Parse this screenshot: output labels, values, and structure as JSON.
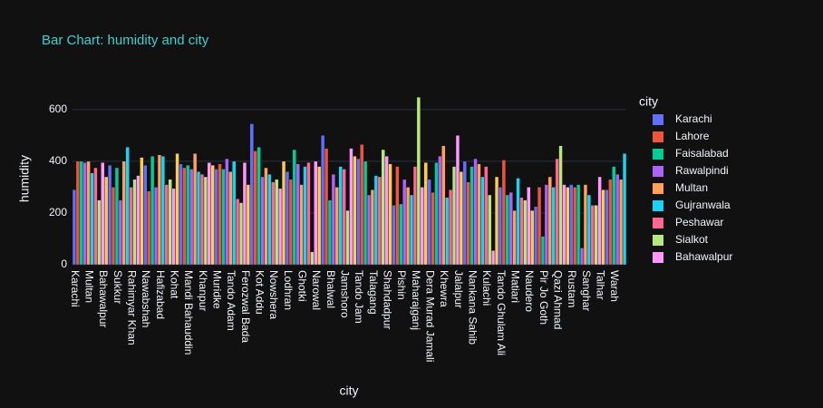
{
  "chart_data": {
    "type": "bar",
    "title": "Bar Chart: humidity and city",
    "x_label": "city",
    "y_label": "humidity",
    "legend_title": "city",
    "legend_count": 9,
    "xtick_every": 4,
    "categories": [
      "Karachi",
      "Lahore",
      "Faisalabad",
      "Rawalpindi",
      "Multan",
      "Gujranwala",
      "Peshawar",
      "Sialkot",
      "Bahawalpur",
      null,
      null,
      null,
      "Sukkur",
      null,
      null,
      null,
      "Rahimyar Khan",
      null,
      null,
      null,
      "Nawabshah",
      null,
      null,
      null,
      "Hafizabad",
      null,
      null,
      null,
      "Kohat",
      null,
      null,
      null,
      "Mandi Bahauddin",
      null,
      null,
      null,
      "Khanpur",
      null,
      null,
      null,
      "Muridke",
      null,
      null,
      null,
      "Tando Adam",
      null,
      null,
      null,
      "Ferozwal Bada",
      null,
      null,
      null,
      "Kot Addu",
      null,
      null,
      null,
      "Nowshera",
      null,
      null,
      null,
      "Lodhran",
      null,
      null,
      null,
      "Ghotki",
      null,
      null,
      null,
      "Narowal",
      null,
      null,
      null,
      "Bhalwal",
      null,
      null,
      null,
      "Jamshoro",
      null,
      null,
      null,
      "Tando Jam",
      null,
      null,
      null,
      "Talagang",
      null,
      null,
      null,
      "Shahdadpur",
      null,
      null,
      null,
      "Pishin",
      null,
      null,
      null,
      "Maharajganj",
      null,
      null,
      null,
      "Dera Murad Jamali",
      null,
      null,
      null,
      "Khewra",
      null,
      null,
      null,
      "Jalalpur",
      null,
      null,
      null,
      "Nankana Sahib",
      null,
      null,
      null,
      "Kulachi",
      null,
      null,
      null,
      "Tando Ghulam Ali",
      null,
      null,
      null,
      "Matiari",
      null,
      null,
      null,
      "Naudero",
      null,
      null,
      null,
      "Pir Jo Goth",
      null,
      null,
      null,
      "Qazi Ahmad",
      null,
      null,
      null,
      "Rustam",
      null,
      null,
      null,
      "Sanghar",
      null,
      null,
      null,
      "Talhar",
      null,
      null,
      null,
      "Warah",
      null,
      null,
      null
    ],
    "values": [
      290,
      400,
      400,
      395,
      400,
      355,
      375,
      250,
      395,
      340,
      385,
      300,
      375,
      250,
      400,
      455,
      300,
      330,
      345,
      415,
      385,
      285,
      420,
      300,
      425,
      420,
      310,
      330,
      295,
      430,
      390,
      375,
      385,
      370,
      430,
      360,
      350,
      340,
      395,
      385,
      370,
      390,
      370,
      410,
      360,
      400,
      255,
      240,
      395,
      310,
      545,
      440,
      455,
      340,
      375,
      350,
      320,
      330,
      295,
      400,
      360,
      330,
      445,
      390,
      310,
      380,
      395,
      50,
      400,
      380,
      500,
      450,
      250,
      350,
      300,
      380,
      370,
      210,
      450,
      420,
      410,
      465,
      400,
      270,
      290,
      345,
      340,
      445,
      420,
      390,
      230,
      380,
      235,
      330,
      300,
      270,
      380,
      648,
      300,
      395,
      330,
      280,
      395,
      420,
      460,
      260,
      290,
      380,
      500,
      360,
      400,
      320,
      380,
      410,
      390,
      340,
      380,
      270,
      55,
      340,
      300,
      405,
      270,
      280,
      210,
      335,
      260,
      250,
      300,
      210,
      225,
      300,
      110,
      310,
      340,
      300,
      410,
      460,
      310,
      300,
      310,
      300,
      310,
      65,
      310,
      270,
      230,
      230,
      340,
      290,
      290,
      330,
      380,
      350,
      330,
      430
    ],
    "palette": [
      "#636efa",
      "#EF553B",
      "#00cc96",
      "#ab63fa",
      "#FFA15A",
      "#19d3f3",
      "#FF6692",
      "#B6E880",
      "#FF97FF",
      "#FECB52"
    ],
    "ylim": [
      0,
      680
    ],
    "yticks": [
      0,
      200,
      400,
      600
    ],
    "grid": true
  }
}
